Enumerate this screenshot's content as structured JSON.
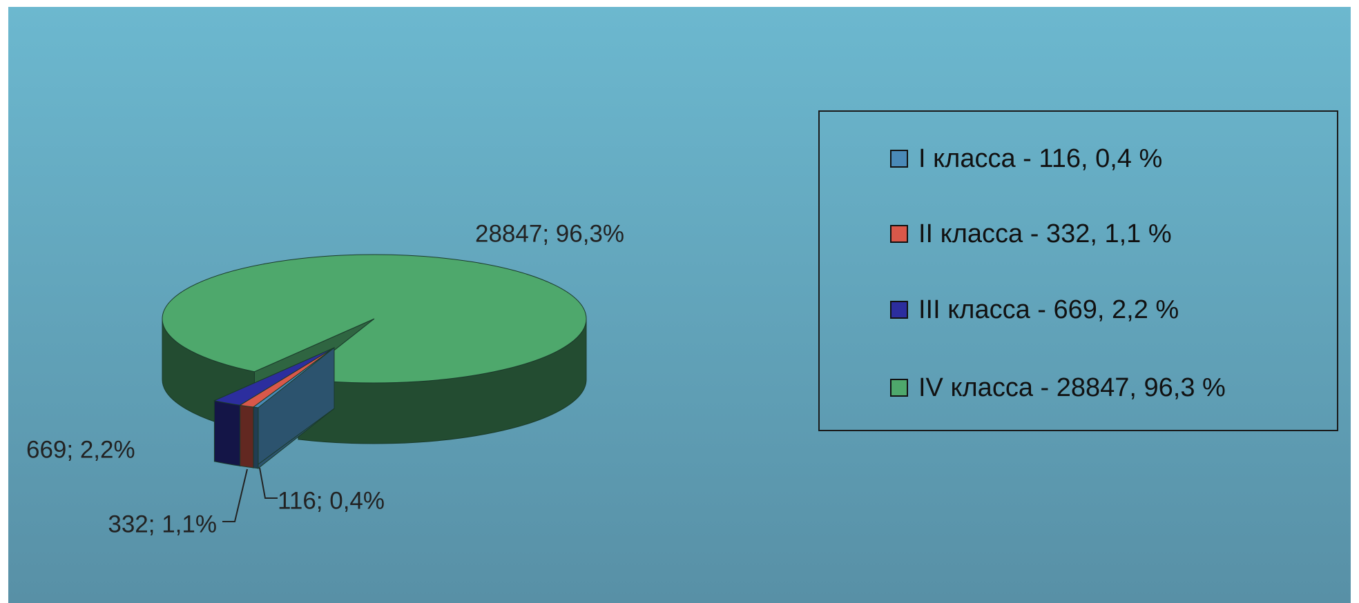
{
  "chart_data": {
    "type": "pie",
    "categories": [
      "I класса - 116, 0,4 %",
      "II класса - 332, 1,1 %",
      "III класса - 669, 2,2 %",
      "IV класса - 28847, 96,3 %"
    ],
    "values": [
      116,
      332,
      669,
      28847
    ],
    "value_labels": [
      "116; 0,4%",
      "332; 1,1%",
      "669; 2,2%",
      "28847; 96,3%"
    ],
    "colors": [
      "#4a8ab8",
      "#d9584a",
      "#2c2e9e",
      "#4ea86c"
    ],
    "legend": "right"
  }
}
